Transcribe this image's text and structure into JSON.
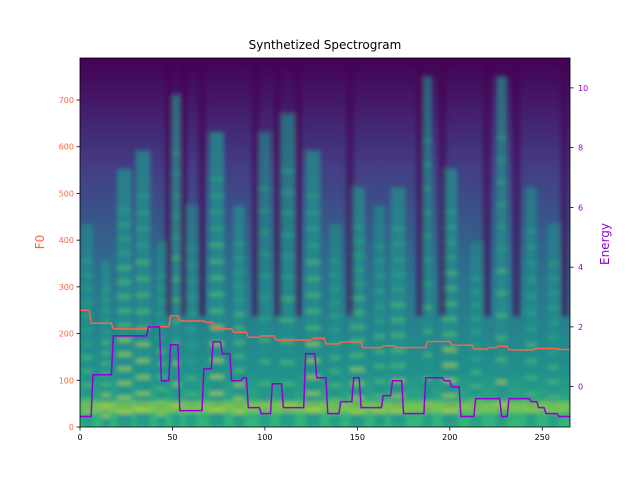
{
  "colors": {
    "f0": "#ff6347",
    "energy": "#9400d3",
    "spectrogram_low": "#440154",
    "spectrogram_mid": "#21918c",
    "spectrogram_high": "#fde725"
  },
  "chart_data": {
    "type": "line",
    "title": "Synthetized Spectrogram",
    "background": "spectrogram heatmap (viridis colormap)",
    "xlim": [
      0,
      265
    ],
    "x_ticks": [
      0,
      50,
      100,
      150,
      200,
      250
    ],
    "y_left": {
      "label": "F0",
      "lim": [
        0,
        790
      ],
      "ticks": [
        0,
        100,
        200,
        300,
        400,
        500,
        600,
        700
      ]
    },
    "y_right": {
      "label": "Energy",
      "lim": [
        -1.35,
        11.0
      ],
      "ticks": [
        0,
        2,
        4,
        6,
        8,
        10
      ]
    },
    "series": [
      {
        "name": "F0",
        "axis": "left",
        "color": "#ff6347",
        "x": [
          0,
          5,
          6,
          17,
          18,
          37,
          38,
          48,
          49,
          53,
          54,
          67,
          68,
          72,
          73,
          82,
          83,
          90,
          91,
          97,
          98,
          105,
          106,
          125,
          126,
          132,
          133,
          140,
          141,
          152,
          153,
          163,
          164,
          170,
          171,
          187,
          188,
          200,
          201,
          212,
          213,
          220,
          221,
          225,
          226,
          231,
          232,
          245,
          246,
          258,
          259,
          265
        ],
        "y": [
          250,
          250,
          222,
          222,
          210,
          210,
          215,
          215,
          238,
          238,
          227,
          227,
          224,
          224,
          210,
          210,
          203,
          203,
          192,
          192,
          195,
          195,
          186,
          186,
          190,
          190,
          178,
          178,
          182,
          182,
          170,
          170,
          174,
          174,
          170,
          170,
          183,
          183,
          175,
          175,
          167,
          167,
          170,
          170,
          173,
          173,
          165,
          165,
          168,
          168,
          166,
          166
        ]
      },
      {
        "name": "Energy",
        "axis": "right",
        "color": "#9400d3",
        "x": [
          0,
          6,
          7,
          17,
          18,
          36,
          37,
          43,
          44,
          48,
          49,
          53,
          54,
          66,
          67,
          71,
          72,
          76,
          77,
          81,
          82,
          87,
          88,
          90,
          91,
          97,
          98,
          103,
          104,
          109,
          110,
          121,
          122,
          127,
          128,
          133,
          134,
          140,
          141,
          147,
          148,
          151,
          152,
          163,
          164,
          168,
          169,
          174,
          175,
          186,
          187,
          196,
          197,
          200,
          201,
          205,
          206,
          213,
          214,
          227,
          228,
          231,
          232,
          243,
          244,
          247,
          248,
          251,
          252,
          258,
          259,
          265
        ],
        "y": [
          -1,
          -1,
          0.4,
          0.4,
          1.7,
          1.7,
          2,
          2,
          0.2,
          0.2,
          1.4,
          1.4,
          -0.8,
          -0.8,
          0.6,
          0.6,
          1.5,
          1.5,
          1.1,
          1.1,
          0.2,
          0.2,
          0.3,
          0.3,
          -0.7,
          -0.7,
          -0.9,
          -0.9,
          0.1,
          0.1,
          -0.7,
          -0.7,
          1.1,
          1.1,
          0.3,
          0.3,
          -0.9,
          -0.9,
          -0.5,
          -0.5,
          0.3,
          0.3,
          -0.7,
          -0.7,
          -0.3,
          -0.3,
          0.2,
          0.2,
          -0.9,
          -0.9,
          0.3,
          0.3,
          0.2,
          0.2,
          0,
          0,
          -1,
          -1,
          -0.4,
          -0.4,
          -1,
          -1,
          -0.4,
          -0.4,
          -0.5,
          -0.5,
          -0.7,
          -0.7,
          -0.9,
          -0.9,
          -1,
          -1
        ]
      }
    ]
  }
}
